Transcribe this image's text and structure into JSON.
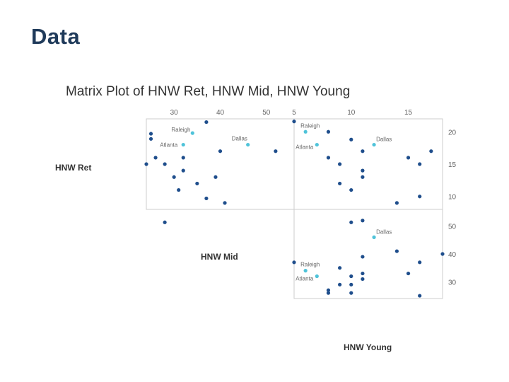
{
  "slide": {
    "title": "Data"
  },
  "colors": {
    "point": "#1f4e8c",
    "highlight": "#4fc3d9",
    "frame": "#cccccc",
    "text": "#333333",
    "label": "#666666"
  },
  "chart_data": {
    "type": "scatter",
    "title": "Matrix Plot of HNW Ret, HNW Mid, HNW Young",
    "variables": [
      "HNW Ret",
      "HNW Mid",
      "HNW Young"
    ],
    "grid": false,
    "axes": {
      "HNW Ret": {
        "range": [
          8,
          22
        ],
        "ticks": [
          10,
          15,
          20
        ],
        "tick_labels": [
          "10",
          "15",
          "20"
        ]
      },
      "HNW Mid": {
        "range": [
          24,
          56
        ],
        "ticks": [
          30,
          40,
          50
        ],
        "tick_labels": [
          "30",
          "40",
          "50"
        ]
      },
      "HNW Young": {
        "range": [
          5,
          18
        ],
        "ticks": [
          5,
          10,
          15
        ],
        "tick_labels": [
          "5",
          "10",
          "15"
        ]
      }
    },
    "panels": [
      {
        "x_var": "HNW Mid",
        "y_var": "HNW Ret",
        "points": [
          [
            25,
            19.7
          ],
          [
            25,
            18.9
          ],
          [
            26,
            16
          ],
          [
            24,
            15
          ],
          [
            28,
            15
          ],
          [
            30,
            13
          ],
          [
            31,
            11
          ],
          [
            32,
            14
          ],
          [
            32,
            16
          ],
          [
            35,
            12
          ],
          [
            37,
            9.7
          ],
          [
            37,
            21.5
          ],
          [
            40,
            17
          ],
          [
            39,
            13
          ],
          [
            41,
            9
          ],
          [
            52,
            17
          ],
          [
            28,
            6
          ]
        ],
        "labeled": [
          {
            "label": "Raleigh",
            "x": 34,
            "y": 19.8
          },
          {
            "label": "Dallas",
            "x": 46,
            "y": 18
          },
          {
            "label": "Atlanta",
            "x": 32,
            "y": 18
          }
        ]
      },
      {
        "x_var": "HNW Young",
        "y_var": "HNW Ret",
        "points": [
          [
            5,
            21.6
          ],
          [
            8,
            20
          ],
          [
            10,
            18.8
          ],
          [
            8,
            16
          ],
          [
            9,
            15
          ],
          [
            11,
            17
          ],
          [
            11,
            14
          ],
          [
            11,
            13
          ],
          [
            9,
            12
          ],
          [
            10,
            11
          ],
          [
            15,
            16
          ],
          [
            16,
            15
          ],
          [
            17,
            17
          ],
          [
            14,
            9
          ],
          [
            16,
            10
          ],
          [
            10,
            6
          ]
        ],
        "labeled": [
          {
            "label": "Raleigh",
            "x": 6,
            "y": 20
          },
          {
            "label": "Dallas",
            "x": 12,
            "y": 18
          },
          {
            "label": "Atlanta",
            "x": 7,
            "y": 18
          }
        ]
      },
      {
        "x_var": "HNW Young",
        "y_var": "HNW Mid",
        "points": [
          [
            11,
            52
          ],
          [
            14,
            41
          ],
          [
            16,
            37
          ],
          [
            18,
            40
          ],
          [
            11,
            39
          ],
          [
            5,
            37
          ],
          [
            9,
            35
          ],
          [
            11,
            33
          ],
          [
            11,
            31
          ],
          [
            10,
            32
          ],
          [
            15,
            33
          ],
          [
            10,
            29
          ],
          [
            9,
            29
          ],
          [
            8,
            27
          ],
          [
            8,
            26
          ],
          [
            10,
            26
          ],
          [
            16,
            25
          ]
        ],
        "labeled": [
          {
            "label": "Dallas",
            "x": 12,
            "y": 46
          },
          {
            "label": "Raleigh",
            "x": 6,
            "y": 34
          },
          {
            "label": "Atlanta",
            "x": 7,
            "y": 32
          }
        ]
      }
    ]
  }
}
